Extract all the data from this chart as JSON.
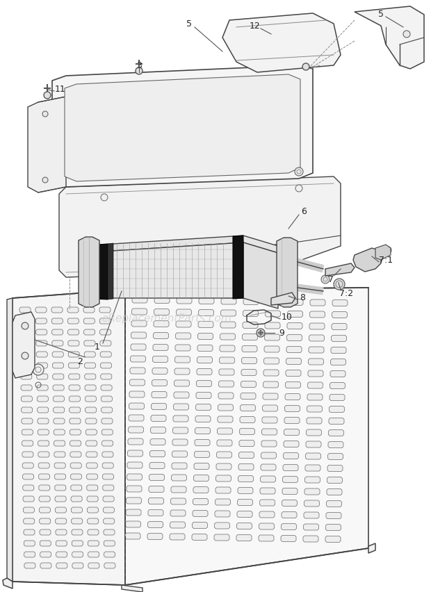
{
  "bg_color": "#ffffff",
  "line_color": "#444444",
  "dark_color": "#222222",
  "fig_width": 6.2,
  "fig_height": 8.53,
  "dpi": 100
}
